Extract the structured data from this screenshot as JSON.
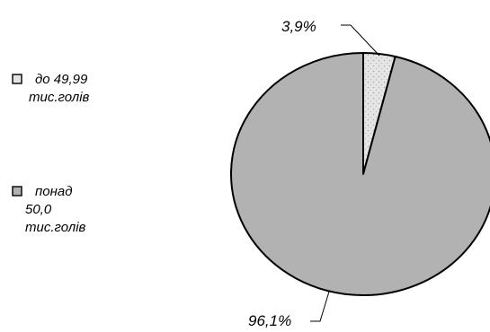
{
  "chart_data": {
    "type": "pie",
    "labels": [
      "до 49,99 тис.голів",
      "понад 50,0 тис.голів"
    ],
    "values": [
      3.9,
      96.1
    ],
    "data_labels": [
      "3,9%",
      "96,1%"
    ],
    "colors": [
      "#e4e4e4",
      "#b2b2b2"
    ],
    "legend": {
      "placement": "left",
      "entries": [
        {
          "lines": [
            "до 49,99",
            "тис.голів"
          ],
          "color": "#e4e4e4"
        },
        {
          "lines": [
            "понад",
            "50,0",
            "тис.голів"
          ],
          "color": "#b2b2b2"
        }
      ]
    }
  }
}
